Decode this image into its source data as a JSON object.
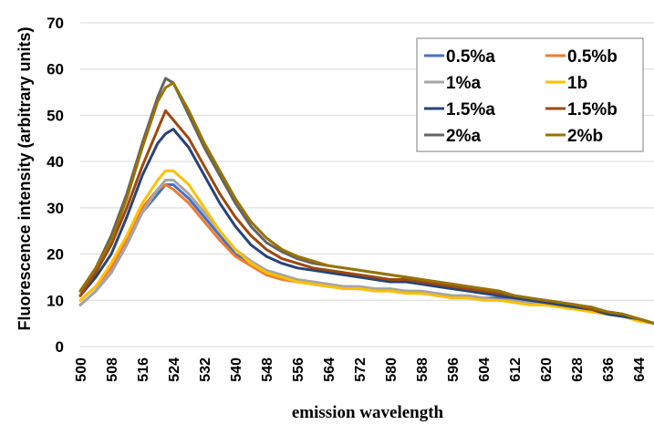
{
  "chart_data": {
    "type": "line",
    "title": "",
    "xlabel": "emission wavelength",
    "ylabel": "Fluorescence intensity (arbitrary units)",
    "xlim": [
      500,
      648
    ],
    "ylim": [
      0,
      70
    ],
    "yticks": [
      "0",
      "10",
      "20",
      "30",
      "40",
      "50",
      "60",
      "70"
    ],
    "xticks": [
      "500",
      "508",
      "516",
      "524",
      "532",
      "540",
      "548",
      "556",
      "564",
      "572",
      "580",
      "588",
      "596",
      "604",
      "612",
      "620",
      "628",
      "636",
      "644"
    ],
    "grid": "horizontal",
    "legend_position": "top-right",
    "x": [
      500,
      504,
      508,
      512,
      516,
      520,
      522,
      524,
      528,
      532,
      536,
      540,
      544,
      548,
      552,
      556,
      560,
      564,
      568,
      572,
      576,
      580,
      584,
      588,
      592,
      596,
      600,
      604,
      608,
      612,
      616,
      620,
      624,
      628,
      632,
      636,
      640,
      644,
      648
    ],
    "series": [
      {
        "name": "0.5%a",
        "color": "#4472C4",
        "values": [
          9,
          12,
          16,
          22,
          29,
          33,
          35,
          35,
          32,
          28,
          24,
          20,
          18,
          16,
          15,
          14,
          13.5,
          13,
          13,
          12.5,
          12.5,
          12,
          12,
          11.5,
          11.5,
          11,
          11,
          10.5,
          10.5,
          10,
          10,
          9.5,
          9,
          8.5,
          8,
          7.5,
          7,
          6,
          5
        ]
      },
      {
        "name": "0.5%b",
        "color": "#ED7D31",
        "values": [
          10,
          13,
          17,
          23,
          30,
          34,
          35,
          34,
          31,
          27,
          23,
          19.5,
          17.5,
          15.5,
          14.5,
          14,
          13.5,
          13,
          13,
          12.5,
          12.5,
          12,
          12,
          11.5,
          11,
          11,
          10.5,
          10.5,
          10,
          10,
          9.5,
          9,
          9,
          8.5,
          8,
          7.5,
          7,
          6,
          5
        ]
      },
      {
        "name": "1%a",
        "color": "#A5A5A5",
        "values": [
          9,
          12,
          16,
          22,
          29,
          34,
          36,
          36,
          33,
          29,
          25,
          21,
          18.5,
          16.5,
          15.5,
          14.5,
          14,
          13.5,
          13,
          13,
          12.5,
          12.5,
          12,
          12,
          11.5,
          11,
          11,
          10.5,
          10,
          10,
          9.5,
          9.5,
          9,
          8.5,
          8,
          7.5,
          7,
          6,
          5
        ]
      },
      {
        "name": "1b",
        "color": "#FFC000",
        "values": [
          10,
          13,
          18,
          24,
          31,
          36,
          38,
          38,
          35,
          30,
          25,
          21,
          18,
          16,
          15,
          14,
          13.5,
          13,
          12.5,
          12.5,
          12,
          12,
          11.5,
          11.5,
          11,
          10.5,
          10.5,
          10,
          10,
          9.5,
          9,
          9,
          8.5,
          8,
          7.5,
          7,
          6.5,
          5.5,
          5
        ]
      },
      {
        "name": "1.5%a",
        "color": "#264478",
        "values": [
          11,
          15,
          20,
          28,
          37,
          44,
          46,
          47,
          43,
          37,
          31,
          26,
          22,
          19.5,
          18,
          17,
          16.5,
          16,
          15.5,
          15,
          14.5,
          14,
          14,
          13.5,
          13,
          12.5,
          12,
          11.5,
          11,
          10.5,
          10,
          9.5,
          9,
          8.5,
          8,
          7,
          6.5,
          6,
          5
        ]
      },
      {
        "name": "1.5%b",
        "color": "#9E480E",
        "values": [
          11,
          16,
          22,
          30,
          39,
          47,
          51,
          49,
          45,
          39,
          33,
          28,
          24,
          21,
          19,
          18,
          17,
          16.5,
          16,
          15.5,
          15,
          14.5,
          14.5,
          14,
          13.5,
          13,
          12.5,
          12,
          11.5,
          11,
          10.5,
          10,
          9.5,
          9,
          8,
          7.5,
          7,
          6,
          5
        ]
      },
      {
        "name": "2%a",
        "color": "#636363",
        "values": [
          12,
          17,
          24,
          33,
          44,
          54,
          58,
          57,
          50,
          43,
          37,
          31,
          26,
          22.5,
          20.5,
          19,
          18,
          17.5,
          17,
          16.5,
          16,
          15.5,
          15,
          14.5,
          14,
          13.5,
          13,
          12.5,
          12,
          11,
          10.5,
          10,
          9.5,
          9,
          8.5,
          7.5,
          7,
          6,
          5
        ]
      },
      {
        "name": "2%b",
        "color": "#997300",
        "values": [
          12,
          17,
          23,
          32,
          43,
          53,
          56,
          57,
          51,
          44,
          38,
          32,
          27,
          23.5,
          21,
          19.5,
          18.5,
          17.5,
          17,
          16.5,
          16,
          15.5,
          15,
          14.5,
          14,
          13.5,
          13,
          12.5,
          12,
          11,
          10.5,
          10,
          9.5,
          9,
          8.5,
          7.5,
          7,
          6,
          5
        ]
      }
    ]
  }
}
